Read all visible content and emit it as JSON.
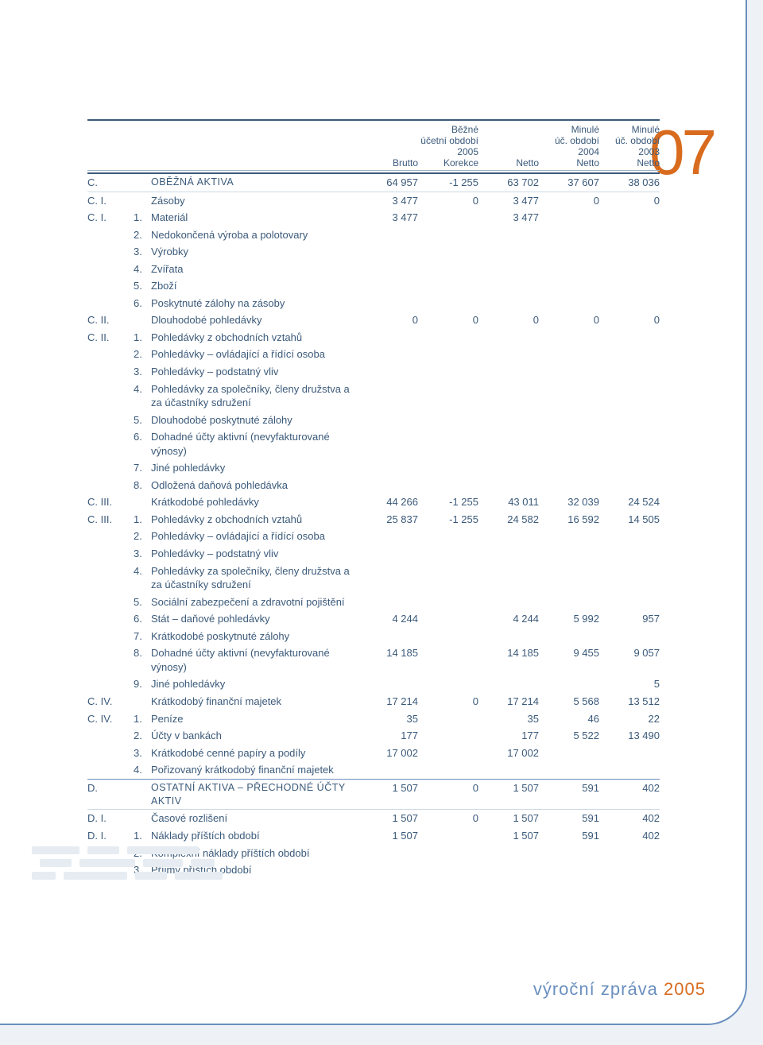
{
  "page_number": "07",
  "footer": {
    "a": "výroční zpráva",
    "b": "2005"
  },
  "colors": {
    "text": "#3b5a7a",
    "accent": "#d86b1e",
    "rule": "#3b5a7a",
    "rule_light": "#cdd9e4",
    "background_page": "#ffffff",
    "background_outer": "#eef2f6",
    "border_frame": "#6a8fbf"
  },
  "header": {
    "lines": [
      [
        "",
        "Běžné",
        "",
        "Minulé",
        "Minulé"
      ],
      [
        "",
        "účetní období",
        "",
        "úč. období",
        "úč. období"
      ],
      [
        "",
        "2005",
        "",
        "2004",
        "2003"
      ],
      [
        "Brutto",
        "Korekce",
        "Netto",
        "Netto",
        "Netto"
      ]
    ]
  },
  "rows": [
    {
      "ref": "C.",
      "num": "",
      "desc": "OBĚŽNÁ AKTIVA",
      "v": [
        "64 957",
        "-1 255",
        "63 702",
        "37 607",
        "38 036"
      ],
      "caps": true,
      "heavy": true
    },
    {
      "ref": "C. I.",
      "num": "",
      "desc": "Zásoby",
      "v": [
        "3 477",
        "0",
        "3 477",
        "0",
        "0"
      ],
      "sep": true
    },
    {
      "ref": "C. I.",
      "num": "1.",
      "desc": "Materiál",
      "v": [
        "3 477",
        "",
        "3 477",
        "",
        ""
      ]
    },
    {
      "ref": "",
      "num": "2.",
      "desc": "Nedokončená výroba a polotovary",
      "v": [
        "",
        "",
        "",
        "",
        ""
      ]
    },
    {
      "ref": "",
      "num": "3.",
      "desc": "Výrobky",
      "v": [
        "",
        "",
        "",
        "",
        ""
      ]
    },
    {
      "ref": "",
      "num": "4.",
      "desc": "Zvířata",
      "v": [
        "",
        "",
        "",
        "",
        ""
      ]
    },
    {
      "ref": "",
      "num": "5.",
      "desc": "Zboží",
      "v": [
        "",
        "",
        "",
        "",
        ""
      ]
    },
    {
      "ref": "",
      "num": "6.",
      "desc": "Poskytnuté zálohy na zásoby",
      "v": [
        "",
        "",
        "",
        "",
        ""
      ]
    },
    {
      "ref": "C. II.",
      "num": "",
      "desc": "Dlouhodobé pohledávky",
      "v": [
        "0",
        "0",
        "0",
        "0",
        "0"
      ]
    },
    {
      "ref": "C. II.",
      "num": "1.",
      "desc": "Pohledávky z obchodních vztahů",
      "v": [
        "",
        "",
        "",
        "",
        ""
      ]
    },
    {
      "ref": "",
      "num": "2.",
      "desc": "Pohledávky – ovládající a řídící osoba",
      "v": [
        "",
        "",
        "",
        "",
        ""
      ]
    },
    {
      "ref": "",
      "num": "3.",
      "desc": "Pohledávky – podstatný vliv",
      "v": [
        "",
        "",
        "",
        "",
        ""
      ]
    },
    {
      "ref": "",
      "num": "4.",
      "desc": "Pohledávky za společníky, členy družstva a za účastníky sdružení",
      "v": [
        "",
        "",
        "",
        "",
        ""
      ]
    },
    {
      "ref": "",
      "num": "5.",
      "desc": "Dlouhodobé poskytnuté zálohy",
      "v": [
        "",
        "",
        "",
        "",
        ""
      ]
    },
    {
      "ref": "",
      "num": "6.",
      "desc": "Dohadné účty aktivní (nevyfakturované výnosy)",
      "v": [
        "",
        "",
        "",
        "",
        ""
      ]
    },
    {
      "ref": "",
      "num": "7.",
      "desc": "Jiné pohledávky",
      "v": [
        "",
        "",
        "",
        "",
        ""
      ]
    },
    {
      "ref": "",
      "num": "8.",
      "desc": "Odložená daňová pohledávka",
      "v": [
        "",
        "",
        "",
        "",
        ""
      ]
    },
    {
      "ref": "C. III.",
      "num": "",
      "desc": "Krátkodobé pohledávky",
      "v": [
        "44 266",
        "-1 255",
        "43 011",
        "32 039",
        "24 524"
      ]
    },
    {
      "ref": "C. III.",
      "num": "1.",
      "desc": "Pohledávky z obchodních vztahů",
      "v": [
        "25 837",
        "-1 255",
        "24 582",
        "16 592",
        "14 505"
      ]
    },
    {
      "ref": "",
      "num": "2.",
      "desc": "Pohledávky – ovládající a řídící osoba",
      "v": [
        "",
        "",
        "",
        "",
        ""
      ]
    },
    {
      "ref": "",
      "num": "3.",
      "desc": "Pohledávky – podstatný vliv",
      "v": [
        "",
        "",
        "",
        "",
        ""
      ]
    },
    {
      "ref": "",
      "num": "4.",
      "desc": "Pohledávky za společníky, členy družstva a za účastníky sdružení",
      "v": [
        "",
        "",
        "",
        "",
        ""
      ]
    },
    {
      "ref": "",
      "num": "5.",
      "desc": "Sociální zabezpečení a zdravotní pojištění",
      "v": [
        "",
        "",
        "",
        "",
        ""
      ]
    },
    {
      "ref": "",
      "num": "6.",
      "desc": "Stát – daňové pohledávky",
      "v": [
        "4 244",
        "",
        "4 244",
        "5 992",
        "957"
      ]
    },
    {
      "ref": "",
      "num": "7.",
      "desc": "Krátkodobé poskytnuté zálohy",
      "v": [
        "",
        "",
        "",
        "",
        ""
      ]
    },
    {
      "ref": "",
      "num": "8.",
      "desc": "Dohadné účty aktivní (nevyfakturované výnosy)",
      "v": [
        "14 185",
        "",
        "14 185",
        "9 455",
        "9 057"
      ]
    },
    {
      "ref": "",
      "num": "9.",
      "desc": "Jiné pohledávky",
      "v": [
        "",
        "",
        "",
        "",
        "5"
      ]
    },
    {
      "ref": "C. IV.",
      "num": "",
      "desc": "Krátkodobý finanční majetek",
      "v": [
        "17 214",
        "0",
        "17 214",
        "5 568",
        "13 512"
      ]
    },
    {
      "ref": "C. IV.",
      "num": "1.",
      "desc": "Peníze",
      "v": [
        "35",
        "",
        "35",
        "46",
        "22"
      ]
    },
    {
      "ref": "",
      "num": "2.",
      "desc": "Účty v bankách",
      "v": [
        "177",
        "",
        "177",
        "5 522",
        "13 490"
      ]
    },
    {
      "ref": "",
      "num": "3.",
      "desc": "Krátkodobé cenné papíry a podíly",
      "v": [
        "17 002",
        "",
        "17 002",
        "",
        ""
      ]
    },
    {
      "ref": "",
      "num": "4.",
      "desc": "Pořizovaný krátkodobý finanční majetek",
      "v": [
        "",
        "",
        "",
        "",
        ""
      ]
    },
    {
      "ref": "D.",
      "num": "",
      "desc": "OSTATNÍ AKTIVA – PŘECHODNÉ ÚČTY AKTIV",
      "v": [
        "1 507",
        "0",
        "1 507",
        "591",
        "402"
      ],
      "caps": true,
      "boldsep": true
    },
    {
      "ref": "D. I.",
      "num": "",
      "desc": "Časové rozlišení",
      "v": [
        "1 507",
        "0",
        "1 507",
        "591",
        "402"
      ],
      "sep": true
    },
    {
      "ref": "D. I.",
      "num": "1.",
      "desc": "Náklady příštích období",
      "v": [
        "1 507",
        "",
        "1 507",
        "591",
        "402"
      ]
    },
    {
      "ref": "",
      "num": "2.",
      "desc": "Komplexní náklady příštích období",
      "v": [
        "",
        "",
        "",
        "",
        ""
      ]
    },
    {
      "ref": "",
      "num": "3.",
      "desc": "Příjmy příštích období",
      "v": [
        "",
        "",
        "",
        "",
        ""
      ]
    }
  ]
}
